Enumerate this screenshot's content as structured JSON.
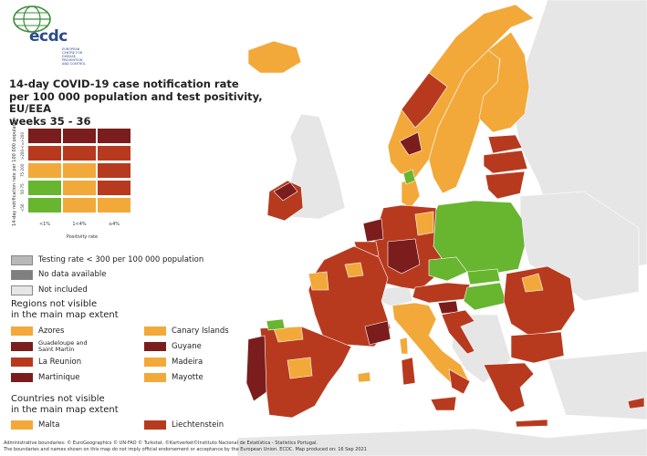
{
  "colors": {
    "dark_red": "#7b1d1d",
    "red": "#b73a1f",
    "orange": "#f2a93a",
    "green": "#68b52f",
    "grey": "#b8b8b8",
    "dark_grey": "#7f7f7f",
    "not_included": "#e6e6e6",
    "sea": "#ffffff"
  },
  "logo": {
    "text": "ecdc",
    "subtitle": "EUROPEAN CENTRE FOR DISEASE PREVENTION AND CONTROL",
    "icon": "globe-icon"
  },
  "title_lines": [
    "14-day COVID-19 case notification rate",
    "per 100 000 population and test positivity, EU/EEA",
    "weeks 35 - 36"
  ],
  "matrix": {
    "y_title": "14-day notification rate per 100 000 population",
    "x_title": "Positivity rate",
    "row_labels": [
      ">200",
      ">200-<=",
      "75-200",
      "50-75",
      "<50"
    ],
    "col_labels": [
      "<1%",
      "1<4%",
      "≥4%"
    ],
    "cells": [
      [
        "dark_red",
        "dark_red",
        "dark_red"
      ],
      [
        "red",
        "red",
        "red"
      ],
      [
        "orange",
        "orange",
        "red"
      ],
      [
        "green",
        "orange",
        "red"
      ],
      [
        "green",
        "orange",
        "orange"
      ]
    ]
  },
  "legend": {
    "testing_rate": "Testing rate < 300 per 100 000 population",
    "no_data": "No data available",
    "not_included": "Not included",
    "regions_header_1": "Regions not visible",
    "regions_header_2": "in the main map extent",
    "regions": [
      {
        "name": "Azores",
        "color": "orange"
      },
      {
        "name": "Canary Islands",
        "color": "orange"
      },
      {
        "name": "Guadeloupe and Saint Martin",
        "color": "dark_red"
      },
      {
        "name": "Guyane",
        "color": "dark_red"
      },
      {
        "name": "La Reunion",
        "color": "red"
      },
      {
        "name": "Madeira",
        "color": "orange"
      },
      {
        "name": "Martinique",
        "color": "dark_red"
      },
      {
        "name": "Mayotte",
        "color": "orange"
      }
    ],
    "countries_header_1": "Countries not visible",
    "countries_header_2": "in the main map extent",
    "countries": [
      {
        "name": "Malta",
        "color": "orange"
      },
      {
        "name": "Liechtenstein",
        "color": "red"
      }
    ]
  },
  "footer_lines": [
    "Administrative boundaries: © EuroGeographics © UN-FAO © Turkstat. ©Kartverket©Instituto Nacional de Estatística - Statistics Portugal.",
    "The boundaries and names shown on this map do not imply official endorsement or acceptance by the European Union. ECDC. Map produced on: 16 Sep 2021"
  ]
}
